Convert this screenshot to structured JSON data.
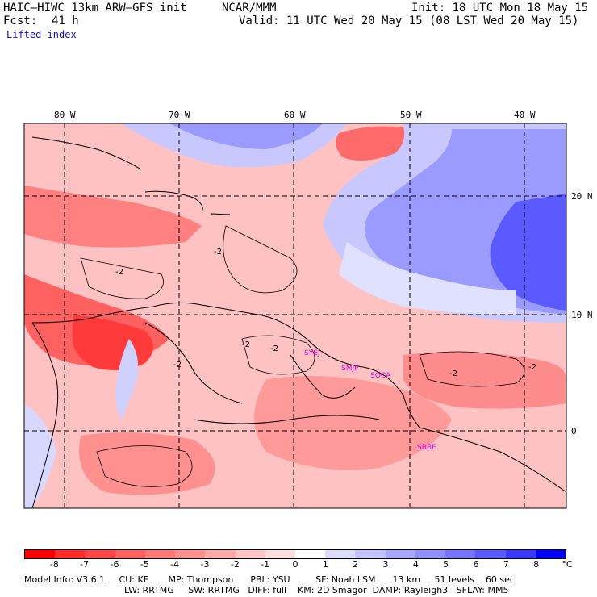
{
  "header": {
    "title": "HAIC–HIWC 13km ARW–GFS init",
    "org": "NCAR/MMM",
    "init": "Init: 18 UTC Mon 18 May 15",
    "fcst_label": "Fcst:",
    "fcst_value": "41 h",
    "valid": "Valid: 11 UTC Wed 20 May 15 (08 LST Wed 20 May 15)",
    "field": "Lifted index"
  },
  "axes": {
    "lon_labels": [
      "80 W",
      "70 W",
      "60 W",
      "50 W",
      "40 W"
    ],
    "lat_labels": [
      "20 N",
      "10 N",
      "0"
    ]
  },
  "stations": [
    "SYEJ",
    "SMJP",
    "SOCA",
    "SBBE"
  ],
  "contour_labels": [
    "-2",
    "-2",
    "-2",
    "-2",
    "-2",
    "-2",
    "-2"
  ],
  "colorbar": {
    "ticks": [
      "-8",
      "-7",
      "-6",
      "-5",
      "-4",
      "-3",
      "-2",
      "-1",
      "0",
      "1",
      "2",
      "3",
      "4",
      "5",
      "6",
      "7",
      "8"
    ],
    "unit": "°C",
    "colors": [
      "#ff0000",
      "#ff2a2a",
      "#ff4545",
      "#ff5f5f",
      "#ff7878",
      "#ff9090",
      "#ffaaaa",
      "#ffc4c4",
      "#ffdede",
      "#ffffff",
      "#dcdcff",
      "#c2c2ff",
      "#a8a8ff",
      "#8f8fff",
      "#7474ff",
      "#5959ff",
      "#3a3aff",
      "#0000ff"
    ]
  },
  "model_info": {
    "line1": "Model Info: V3.6.1     CU: KF       MP: Thompson      PBL: YSU         SF: Noah LSM      13 km     51 levels    60 sec",
    "line2": "LW: RRTMG     SW: RRTMG   DIFF: full    KM: 2D Smagor  DAMP: Rayleigh3   SFLAY: MM5"
  }
}
